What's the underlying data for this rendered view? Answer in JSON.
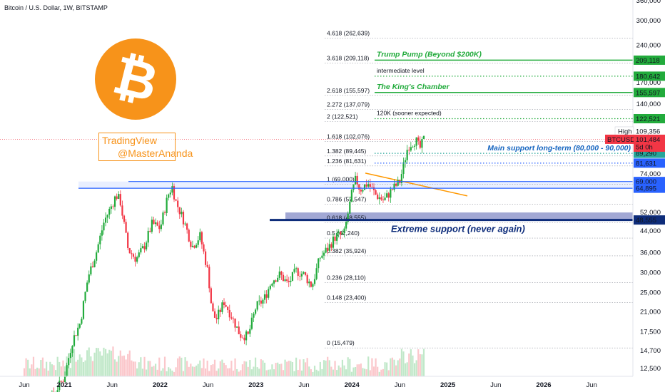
{
  "title": "Bitcoin / U.S. Dollar, 1W, BITSTAMP",
  "watermark": {
    "line1": "TradingView",
    "line2": "@MasterAnanda"
  },
  "chart_data": {
    "type": "candlestick",
    "y_scale": "log",
    "y_ticks": [
      "360,000",
      "300,000",
      "240,000",
      "170,000",
      "140,000",
      "100,000",
      "74,000",
      "52,000",
      "44,000",
      "36,000",
      "30,000",
      "25,000",
      "21,000",
      "17,500",
      "14,700",
      "12,500"
    ],
    "y_tick_values": [
      360000,
      300000,
      240000,
      170000,
      140000,
      100000,
      74000,
      52000,
      44000,
      36000,
      30000,
      25000,
      21000,
      17500,
      14700,
      12500
    ],
    "x_ticks": [
      "Jun",
      "2021",
      "Jun",
      "2022",
      "Jun",
      "2023",
      "Jun",
      "2024",
      "Jun",
      "2025",
      "Jun",
      "2026",
      "Jun"
    ],
    "x_tick_bold": [
      false,
      true,
      false,
      true,
      false,
      true,
      false,
      true,
      false,
      true,
      false,
      true,
      false
    ],
    "x_tick_months": [
      0,
      5,
      11,
      17,
      23,
      29,
      35,
      41,
      47,
      53,
      59,
      65,
      71
    ],
    "price_anchors": [
      [
        0,
        9500
      ],
      [
        3,
        9200
      ],
      [
        5,
        11500
      ],
      [
        6,
        16000
      ],
      [
        7,
        19000
      ],
      [
        8,
        29000
      ],
      [
        9,
        36000
      ],
      [
        10,
        48000
      ],
      [
        11,
        56000
      ],
      [
        11.5,
        61000
      ],
      [
        12,
        58000
      ],
      [
        13,
        37000
      ],
      [
        14,
        34000
      ],
      [
        15,
        38000
      ],
      [
        16,
        47000
      ],
      [
        17,
        45000
      ],
      [
        18,
        61000
      ],
      [
        18.5,
        66000
      ],
      [
        19,
        57000
      ],
      [
        20,
        48000
      ],
      [
        21,
        38000
      ],
      [
        22,
        42000
      ],
      [
        23,
        30000
      ],
      [
        23.5,
        21000
      ],
      [
        24,
        19500
      ],
      [
        25,
        23000
      ],
      [
        26,
        20000
      ],
      [
        27,
        17000
      ],
      [
        28,
        16800
      ],
      [
        29,
        22000
      ],
      [
        30,
        23500
      ],
      [
        31,
        28000
      ],
      [
        32,
        29500
      ],
      [
        33,
        27000
      ],
      [
        34,
        30500
      ],
      [
        35,
        29500
      ],
      [
        36,
        26500
      ],
      [
        37,
        34500
      ],
      [
        38,
        37500
      ],
      [
        39,
        42000
      ],
      [
        40,
        42500
      ],
      [
        41,
        62000
      ],
      [
        41.5,
        71000
      ],
      [
        42,
        64000
      ],
      [
        43,
        68000
      ],
      [
        44,
        61000
      ],
      [
        45,
        58000
      ],
      [
        46,
        64000
      ],
      [
        47,
        69000
      ],
      [
        48,
        95000
      ],
      [
        49,
        101000
      ],
      [
        49.5,
        93000
      ],
      [
        50,
        101484
      ]
    ],
    "fib_levels": [
      {
        "label": "4.618 (262,639)",
        "value": 262639,
        "color": "#131722"
      },
      {
        "label": "3.618 (209,118)",
        "value": 209118,
        "color": "#131722"
      },
      {
        "label": "2.618 (155,597)",
        "value": 155597,
        "color": "#f57c00"
      },
      {
        "label": "2.272 (137,079)",
        "value": 137079,
        "color": "#131722"
      },
      {
        "label": "2 (122,521)",
        "value": 122521,
        "color": "#131722"
      },
      {
        "label": "1.618 (102,076)",
        "value": 102076,
        "color": "#f57c00"
      },
      {
        "label": "1.382 (89,445)",
        "value": 89445,
        "color": "#131722"
      },
      {
        "label": "1.236 (81,631)",
        "value": 81631,
        "color": "#131722"
      },
      {
        "label": "1 (69,000)",
        "value": 69000,
        "color": "#131722"
      },
      {
        "label": "0.786 (57,547)",
        "value": 57547,
        "color": "#131722"
      },
      {
        "label": "0.618 (48,555)",
        "value": 48555,
        "color": "#c62828"
      },
      {
        "label": "0.5 (42,240)",
        "value": 42240,
        "color": "#131722"
      },
      {
        "label": "0.382 (35,924)",
        "value": 35924,
        "color": "#131722"
      },
      {
        "label": "0.236 (28,110)",
        "value": 28110,
        "color": "#131722"
      },
      {
        "label": "0.148 (23,400)",
        "value": 23400,
        "color": "#131722"
      },
      {
        "label": "0 (15,479)",
        "value": 15479,
        "color": "#131722"
      }
    ],
    "levels": [
      {
        "value": 209118,
        "label": "Trump Pump (Beyond $200K)",
        "badge": "209,118",
        "style": "solid",
        "color": "#22ab3c",
        "badge_color": "#22ab3c"
      },
      {
        "value": 180642,
        "label": "intermediate level",
        "badge": "180,642",
        "style": "dotted",
        "color": "#22ab3c",
        "badge_color": "#22ab3c"
      },
      {
        "value": 155597,
        "label": "The King's Chamber",
        "badge": "155,597",
        "style": "solid",
        "color": "#22ab3c",
        "badge_color": "#22ab3c"
      },
      {
        "value": 122521,
        "label": "120K (sooner expected)",
        "badge": "122,521",
        "style": "dotted",
        "color": "#22ab3c",
        "badge_color": "#22ab3c"
      },
      {
        "value": 89290,
        "label": "Main support long-term (80,000 - 90,000)",
        "badge": "89,290",
        "style": "dotted",
        "color": "#26a69a",
        "badge_color": "#26a69a"
      },
      {
        "value": 81631,
        "label": "",
        "badge": "81,631",
        "style": "dotted",
        "color": "#2962ff",
        "badge_color": "#2962ff"
      },
      {
        "value": 69000,
        "label": "",
        "badge": "69,000",
        "style": "solid",
        "color": "#2962ff",
        "badge_color": "#2962ff"
      },
      {
        "value": 64895,
        "label": "",
        "badge": "64,895",
        "style": "solid",
        "color": "#2962ff",
        "badge_color": "#2962ff"
      },
      {
        "value": 48555,
        "label": "Extreme support (never again)",
        "badge": "48,555",
        "style": "thick",
        "color": "#0d2c7a",
        "badge_color": "#0d2c7a"
      }
    ],
    "price_info": {
      "high_label": "High",
      "high_value": "109,356",
      "symbol": "BTCUSD",
      "last_price": "101,484",
      "countdown": "5d 0h"
    },
    "price_badge_color": "#f23645",
    "up_color": "#22ab3c",
    "down_color": "#f23645"
  }
}
